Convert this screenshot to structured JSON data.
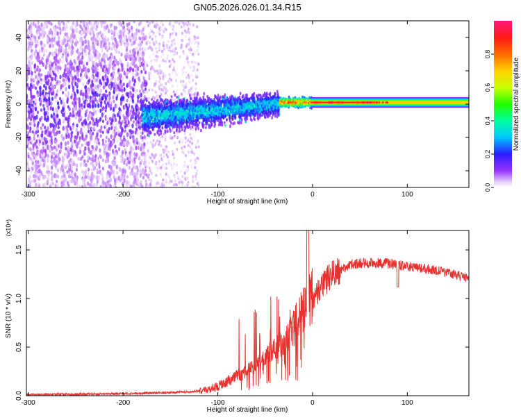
{
  "figure": {
    "title": "GN05.2026.026.01.34.R15"
  },
  "chart_data": [
    {
      "type": "heatmap",
      "title": "GN05.2026.026.01.34.R15",
      "xlabel": "Height of straight line (km)",
      "ylabel": "Frequency (Hz)",
      "xlim": [
        -302,
        165
      ],
      "ylim": [
        -50,
        50
      ],
      "xticks": [
        "-300",
        "-200",
        "-100",
        "0",
        "100"
      ],
      "xtick_values": [
        -300,
        -200,
        -100,
        0,
        100
      ],
      "yticks": [
        "40",
        "20",
        "0",
        "-20",
        "-40"
      ],
      "ytick_values": [
        40,
        20,
        0,
        -20,
        -40
      ],
      "colorbar": {
        "label": "Normalized spectral amplitude",
        "range": [
          0,
          1
        ],
        "ticks": [
          "0.0",
          "0.2",
          "0.4",
          "0.6",
          "0.8"
        ],
        "tick_values": [
          0.0,
          0.2,
          0.4,
          0.6,
          0.8
        ]
      },
      "regions": [
        {
          "name": "scattered-noise",
          "x": [
            -302,
            -175
          ],
          "freq_spread": 50,
          "amplitude": [
            0.02,
            0.15
          ]
        },
        {
          "name": "sparse-noise",
          "x": [
            -175,
            -120
          ],
          "freq_spread": 50,
          "amplitude": [
            0.01,
            0.06
          ]
        },
        {
          "name": "broad-band",
          "x": [
            -180,
            -35
          ],
          "freq_center": -8,
          "freq_spread": 14,
          "amplitude": [
            0.1,
            0.35
          ]
        },
        {
          "name": "transition",
          "x": [
            -35,
            0
          ],
          "freq_center": 1,
          "freq_spread": 4,
          "amplitude": [
            0.3,
            0.95
          ]
        },
        {
          "name": "narrow-line",
          "x": [
            0,
            165
          ],
          "freq_center": 1,
          "freq_spread": 2.5,
          "amplitude": [
            0.4,
            0.95
          ]
        }
      ]
    },
    {
      "type": "line",
      "xlabel": "Height of straight line (km)",
      "ylabel": "SNR (10 * v/v)",
      "y_multiplier": "(x10⁴)",
      "xlim": [
        -302,
        165
      ],
      "ylim": [
        0,
        1.7
      ],
      "xticks": [
        "-300",
        "-200",
        "-100",
        "0",
        "100"
      ],
      "xtick_values": [
        -300,
        -200,
        -100,
        0,
        100
      ],
      "yticks": [
        "0.0",
        "0.5",
        "1.0",
        "1.5"
      ],
      "ytick_values": [
        0.0,
        0.5,
        1.0,
        1.5
      ],
      "series": [
        {
          "name": "SNR",
          "color": "#e8312f",
          "envelope": {
            "x": [
              -302,
              -250,
              -200,
              -160,
              -130,
              -110,
              -95,
              -80,
              -60,
              -45,
              -30,
              -20,
              -10,
              0,
              20,
              40,
              60,
              80,
              95,
              110,
              130,
              150,
              165
            ],
            "y": [
              0.01,
              0.015,
              0.02,
              0.03,
              0.04,
              0.06,
              0.12,
              0.2,
              0.3,
              0.45,
              0.55,
              0.7,
              0.85,
              1.0,
              1.25,
              1.35,
              1.37,
              1.36,
              1.34,
              1.32,
              1.29,
              1.25,
              1.2
            ]
          }
        }
      ]
    }
  ]
}
